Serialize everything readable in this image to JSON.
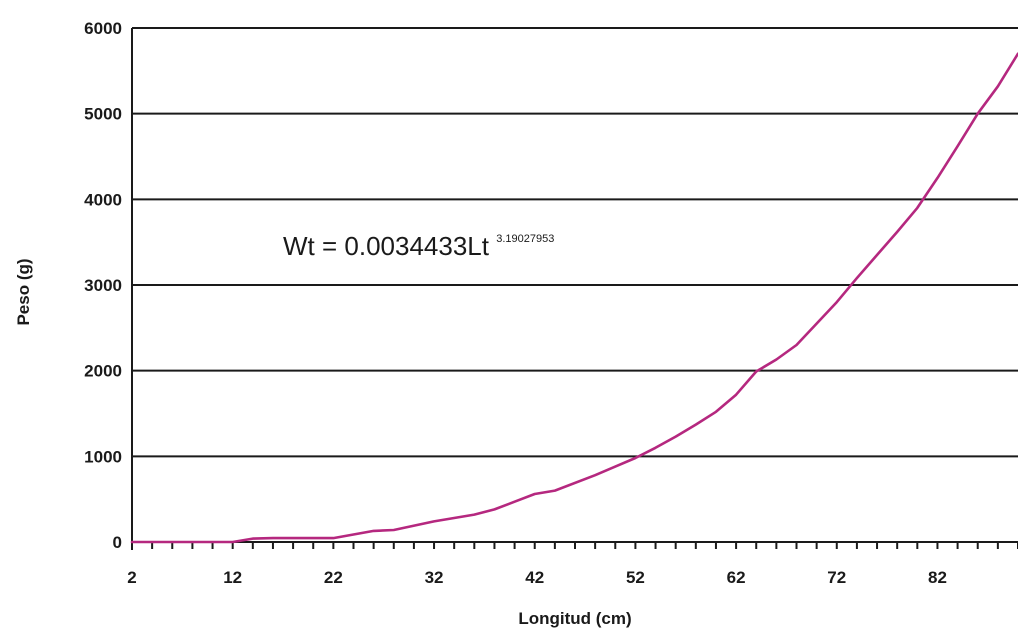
{
  "chart_data": {
    "type": "line",
    "title": "",
    "xlabel": "Longitud (cm)",
    "ylabel": "Peso (g)",
    "xlim": [
      2,
      90
    ],
    "ylim": [
      0,
      6000
    ],
    "x_ticks": [
      2,
      12,
      22,
      32,
      42,
      52,
      62,
      72,
      82
    ],
    "y_ticks": [
      0,
      1000,
      2000,
      3000,
      4000,
      5000,
      6000
    ],
    "grid": "horizontal",
    "legend": "none",
    "annotation": {
      "text": "Wt = 0.0034433Lt",
      "exponent": "3.19027953"
    },
    "series": [
      {
        "color": "#b5287f",
        "x": [
          2,
          12,
          14,
          16,
          20,
          22,
          26,
          28,
          32,
          36,
          38,
          40,
          42,
          44,
          48,
          50,
          52,
          54,
          56,
          58,
          60,
          62,
          64,
          66,
          68,
          70,
          72,
          74,
          76,
          78,
          80,
          82,
          84,
          86,
          88,
          90
        ],
        "y": [
          0,
          0,
          40,
          45,
          45,
          45,
          130,
          140,
          240,
          320,
          380,
          470,
          560,
          600,
          780,
          880,
          980,
          1100,
          1230,
          1370,
          1520,
          1720,
          1990,
          2130,
          2300,
          2550,
          2800,
          3080,
          3350,
          3620,
          3900,
          4250,
          4620,
          5000,
          5320,
          5700
        ]
      }
    ]
  }
}
